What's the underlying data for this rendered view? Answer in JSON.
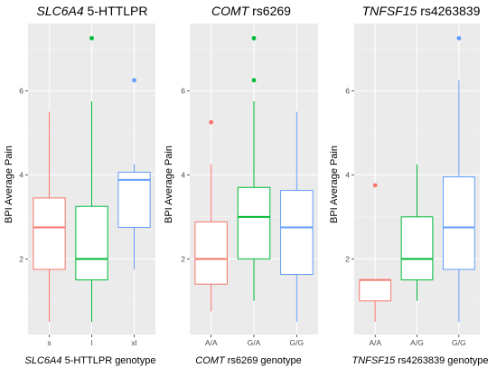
{
  "chart_data": [
    {
      "type": "box",
      "title": "SLC6A4 5-HTTLPR",
      "title_gene": "SLC6A4",
      "title_rest": " 5-HTTLPR",
      "xlabel_gene": "SLC6A4",
      "xlabel_rest": " 5-HTTLPR genotype",
      "ylabel": "BPI Average Pain",
      "ylim": [
        0.2,
        7.6
      ],
      "yticks": [
        2,
        4,
        6
      ],
      "categories": [
        "s",
        "l",
        "xl"
      ],
      "boxes": [
        {
          "category": "s",
          "color": "#F8766D",
          "min": 0.5,
          "q1": 1.75,
          "median": 2.75,
          "q3": 3.45,
          "max": 5.5,
          "outliers": []
        },
        {
          "category": "l",
          "color": "#00BA38",
          "min": 0.5,
          "q1": 1.5,
          "median": 2.0,
          "q3": 3.25,
          "max": 5.75,
          "outliers": [
            7.25
          ]
        },
        {
          "category": "xl",
          "color": "#619CFF",
          "min": 1.75,
          "q1": 2.75,
          "median": 3.88,
          "q3": 4.06,
          "max": 4.25,
          "outliers": [
            6.25
          ]
        }
      ]
    },
    {
      "type": "box",
      "title": "COMT rs6269",
      "title_gene": "COMT",
      "title_rest": " rs6269",
      "xlabel_gene": "COMT",
      "xlabel_rest": " rs6269 genotype",
      "ylabel": "BPI Average Pain",
      "ylim": [
        0.2,
        7.6
      ],
      "yticks": [
        2,
        4,
        6
      ],
      "categories": [
        "A/A",
        "G/A",
        "G/G"
      ],
      "boxes": [
        {
          "category": "A/A",
          "color": "#F8766D",
          "min": 0.75,
          "q1": 1.4,
          "median": 2.0,
          "q3": 2.88,
          "max": 4.25,
          "outliers": [
            5.25
          ]
        },
        {
          "category": "G/A",
          "color": "#00BA38",
          "min": 1.0,
          "q1": 2.0,
          "median": 3.0,
          "q3": 3.7,
          "max": 5.75,
          "outliers": [
            6.25,
            7.25
          ]
        },
        {
          "category": "G/G",
          "color": "#619CFF",
          "min": 0.5,
          "q1": 1.63,
          "median": 2.75,
          "q3": 3.63,
          "max": 5.5,
          "outliers": []
        }
      ]
    },
    {
      "type": "box",
      "title": "TNFSF15 rs4263839",
      "title_gene": "TNFSF15",
      "title_rest": " rs4263839",
      "xlabel_gene": "TNFSF15",
      "xlabel_rest": " rs4263839 genotype",
      "ylabel": "BPI Average Pain",
      "ylim": [
        0.2,
        7.6
      ],
      "yticks": [
        2,
        4,
        6
      ],
      "categories": [
        "A/A",
        "A/G",
        "G/G"
      ],
      "boxes": [
        {
          "category": "A/A",
          "color": "#F8766D",
          "min": 0.5,
          "q1": 1.0,
          "median": 1.5,
          "q3": 1.5,
          "max": 1.5,
          "outliers": [
            3.75
          ]
        },
        {
          "category": "A/G",
          "color": "#00BA38",
          "min": 1.0,
          "q1": 1.5,
          "median": 2.0,
          "q3": 3.0,
          "max": 4.25,
          "outliers": []
        },
        {
          "category": "G/G",
          "color": "#619CFF",
          "min": 0.5,
          "q1": 1.75,
          "median": 2.75,
          "q3": 3.95,
          "max": 6.25,
          "outliers": [
            7.25
          ]
        }
      ]
    }
  ],
  "colors": {
    "panel_bg": "#EBEBEB",
    "grid_major": "#FFFFFF",
    "grid_minor": "#F4F4F4"
  }
}
